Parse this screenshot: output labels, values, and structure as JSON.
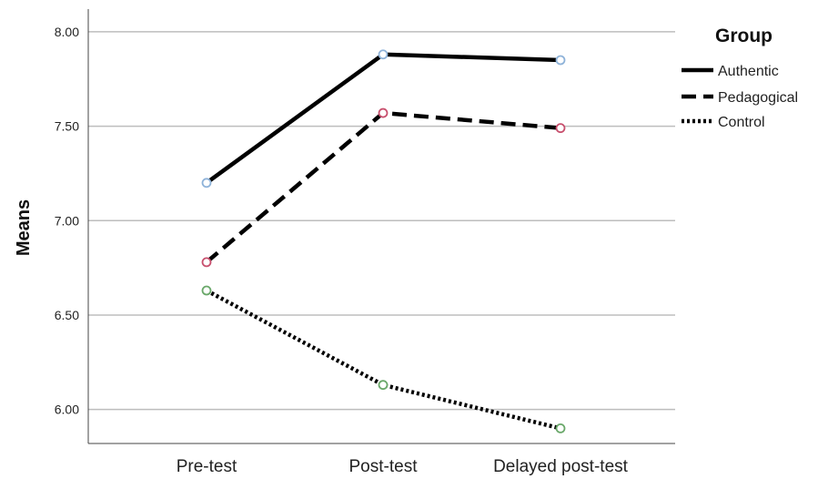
{
  "chart_data": {
    "type": "line",
    "categories": [
      "Pre-test",
      "Post-test",
      "Delayed post-test"
    ],
    "series": [
      {
        "name": "Authentic",
        "values": [
          7.2,
          7.88,
          7.85
        ],
        "line_style": "solid",
        "marker_color": "#8fb3d9"
      },
      {
        "name": "Pedagogical",
        "values": [
          6.78,
          7.57,
          7.49
        ],
        "line_style": "dashed",
        "marker_color": "#c8506e"
      },
      {
        "name": "Control",
        "values": [
          6.63,
          6.13,
          5.9
        ],
        "line_style": "dotted",
        "marker_color": "#6aa86a"
      }
    ],
    "ylabel": "Means",
    "xlabel": "",
    "ylim": [
      5.82,
      8.12
    ],
    "yticks": [
      "6.00",
      "6.50",
      "7.00",
      "7.50",
      "8.00"
    ],
    "legend_title": "Group",
    "legend_position": "top-right",
    "grid": "horizontal",
    "line_color": "#000000",
    "grid_color": "#bdbdbd"
  }
}
